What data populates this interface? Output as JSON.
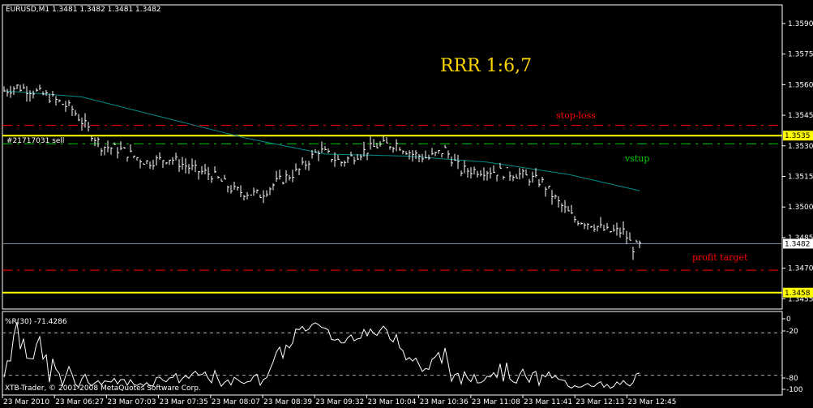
{
  "window": {
    "symbol_info": "EURUSD,M1  1.3481 1.3482 1.3481 1.3482",
    "copyright": "XTB-Trader, © 2001-2008 MetaQuotes Software Corp."
  },
  "annotations": {
    "rrr": "RRR 1:6,7",
    "stop_loss": "stop-loss",
    "entry": "vstup",
    "profit_target": "profit target",
    "order": "#21717031 sell"
  },
  "colors": {
    "background": "#000000",
    "bars": "#ffffff",
    "ma": "#008b8b",
    "stop": "#ff0000",
    "entry": "#00cc00",
    "yellow": "#ffff00",
    "bid": "#778899"
  },
  "chart_data": {
    "type": "bar",
    "symbol": "EURUSD",
    "timeframe": "M1",
    "ylim": [
      1.345,
      1.3598
    ],
    "y_ticks": [
      "1.3590",
      "1.3575",
      "1.3560",
      "1.3545",
      "1.3530",
      "1.3515",
      "1.3500",
      "1.3485",
      "1.3470",
      "1.3455"
    ],
    "price_markers": [
      {
        "label": "1.3535",
        "type": "yellow"
      },
      {
        "label": "1.3482",
        "type": "bid"
      },
      {
        "label": "1.3458",
        "type": "yellow"
      }
    ],
    "levels": {
      "stop_loss": 1.354,
      "order_line": 1.3535,
      "entry": 1.3531,
      "bid": 1.3482,
      "profit_target": 1.3469,
      "lower_yellow": 1.3458
    },
    "x_ticks": [
      "23 Mar 2010",
      "23 Mar 06:27",
      "23 Mar 07:03",
      "23 Mar 07:35",
      "23 Mar 08:07",
      "23 Mar 08:39",
      "23 Mar 09:32",
      "23 Mar 10:04",
      "23 Mar 10:36",
      "23 Mar 11:08",
      "23 Mar 11:41",
      "23 Mar 12:13",
      "23 Mar 12:45"
    ],
    "price_path": [
      [
        0,
        1.3557
      ],
      [
        4,
        1.3559
      ],
      [
        9,
        1.3557
      ],
      [
        14,
        1.3554
      ],
      [
        21,
        1.3548
      ],
      [
        26,
        1.3538
      ],
      [
        30,
        1.353
      ],
      [
        36,
        1.3528
      ],
      [
        44,
        1.3522
      ],
      [
        51,
        1.3524
      ],
      [
        59,
        1.3518
      ],
      [
        64,
        1.3516
      ],
      [
        71,
        1.3508
      ],
      [
        79,
        1.3506
      ],
      [
        84,
        1.3512
      ],
      [
        91,
        1.3518
      ],
      [
        97,
        1.3528
      ],
      [
        104,
        1.3522
      ],
      [
        109,
        1.3526
      ],
      [
        115,
        1.353
      ],
      [
        121,
        1.3531
      ],
      [
        126,
        1.3526
      ],
      [
        131,
        1.3524
      ],
      [
        136,
        1.3528
      ],
      [
        141,
        1.3518
      ],
      [
        149,
        1.3518
      ],
      [
        159,
        1.3516
      ],
      [
        166,
        1.3512
      ],
      [
        171,
        1.3502
      ],
      [
        176,
        1.3494
      ],
      [
        181,
        1.3492
      ],
      [
        186,
        1.3488
      ],
      [
        191,
        1.3488
      ],
      [
        194,
        1.348
      ],
      [
        196,
        1.3481
      ]
    ],
    "ma_path": [
      [
        0,
        1.3557
      ],
      [
        24,
        1.3554
      ],
      [
        49,
        1.3544
      ],
      [
        74,
        1.3534
      ],
      [
        99,
        1.3526
      ],
      [
        124,
        1.3525
      ],
      [
        149,
        1.3522
      ],
      [
        174,
        1.3516
      ],
      [
        196,
        1.3508
      ]
    ],
    "indicator": {
      "label": "%R(30) -71.4286",
      "period": 30,
      "value": -71.4286,
      "ylim": [
        -100,
        0
      ],
      "y_ticks": [
        "0",
        "-20",
        "-80",
        "-100"
      ],
      "levels": [
        -20,
        -80
      ]
    }
  }
}
